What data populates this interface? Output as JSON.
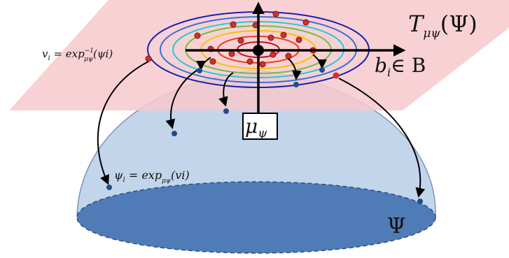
{
  "labels": {
    "tangent_space": "T",
    "tangent_space_sub": "μψ",
    "tangent_space_arg": "(Ψ)",
    "basis": "b",
    "basis_sub": "i",
    "basis_rest": "∈ B",
    "log_map_lhs": "v",
    "log_map_lhs_sub": "i",
    "log_map_eq": " = exp",
    "log_map_sup": "−1",
    "log_map_sub": "μψ",
    "log_map_arg": "(ψi)",
    "exp_map_lhs": "ψ",
    "exp_map_lhs_sub": "i",
    "exp_map_eq": " = exp",
    "exp_map_sub": "μψ",
    "exp_map_arg": "(vi)",
    "mean": "μ",
    "mean_sub": "ψ",
    "manifold": "Ψ"
  },
  "colors": {
    "plane": "#f7c9cc",
    "dome": "#c3d5ea",
    "dome_edge": "#7b94ba",
    "base_disk": "#4f7cb7",
    "point_blue": "#1f4e8c",
    "point_red": "#d0302c",
    "rings": [
      "#c0141a",
      "#e8401f",
      "#f5c400",
      "#6fbf3c",
      "#25c7d6",
      "#3a6fd8",
      "#1a1fb0"
    ]
  }
}
